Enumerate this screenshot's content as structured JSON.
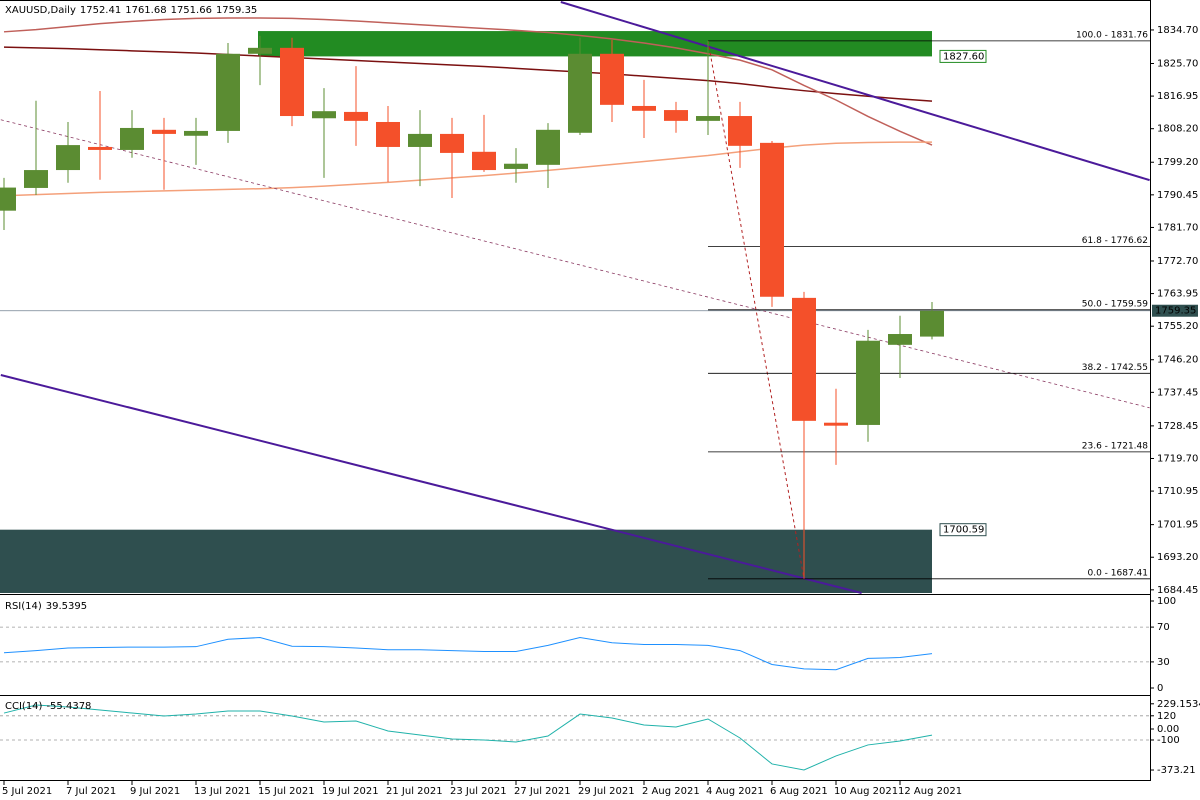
{
  "chart_data": [
    {
      "type": "candlestick",
      "title": "XAUUSD,Daily",
      "categories": [
        "5 Jul 2021",
        null,
        "7 Jul 2021",
        null,
        "9 Jul 2021",
        null,
        "13 Jul 2021",
        null,
        "15 Jul 2021",
        null,
        "19 Jul 2021",
        null,
        "21 Jul 2021",
        null,
        "23 Jul 2021",
        null,
        "27 Jul 2021",
        null,
        "29 Jul 2021",
        null,
        "2 Aug 2021",
        null,
        "4 Aug 2021",
        null,
        "6 Aug 2021",
        null,
        "10 Aug 2021",
        null,
        "12 Aug 2021",
        null
      ],
      "open": [
        1786.2,
        1792.3,
        1797.1,
        1803.3,
        1802.5,
        1807.9,
        1806.3,
        1807.6,
        1828.3,
        1829.9,
        1811.0,
        1812.7,
        1810.0,
        1803.3,
        1806.8,
        1802.0,
        1797.4,
        1798.5,
        1807.1,
        1828.3,
        1814.3,
        1813.2,
        1810.3,
        1811.6,
        1804.4,
        1762.8,
        1729.3,
        1728.7,
        1750.2,
        1752.41
      ],
      "high": [
        1795.0,
        1815.7,
        1810.0,
        1818.3,
        1813.2,
        1811.1,
        1811.1,
        1831.2,
        1833.1,
        1832.6,
        1819.1,
        1825.0,
        1814.3,
        1813.2,
        1811.1,
        1811.9,
        1803.0,
        1809.7,
        1832.6,
        1832.0,
        1821.3,
        1815.4,
        1831.76,
        1815.4,
        1804.9,
        1764.4,
        1738.4,
        1754.2,
        1758.0,
        1761.68
      ],
      "low": [
        1781.0,
        1790.4,
        1793.7,
        1794.5,
        1800.4,
        1791.8,
        1798.5,
        1804.4,
        1819.9,
        1808.9,
        1795.0,
        1803.6,
        1793.9,
        1792.8,
        1789.6,
        1796.6,
        1793.7,
        1792.3,
        1806.5,
        1810.0,
        1805.7,
        1807.1,
        1806.5,
        1797.7,
        1760.4,
        1687.41,
        1718.0,
        1724.2,
        1741.3,
        1751.66
      ],
      "close": [
        1792.4,
        1797.1,
        1803.8,
        1802.5,
        1808.4,
        1806.8,
        1807.6,
        1828.3,
        1829.9,
        1811.6,
        1812.9,
        1810.3,
        1803.3,
        1806.8,
        1801.7,
        1797.1,
        1798.8,
        1807.9,
        1828.3,
        1814.6,
        1813.0,
        1810.3,
        1811.6,
        1803.6,
        1763.1,
        1729.8,
        1728.5,
        1751.3,
        1753.1,
        1759.35
      ],
      "up_color": "#5b8c32",
      "down_color": "#f4502a",
      "ylim": [
        1683.6,
        1842.2
      ],
      "yticks": [
        {
          "value": 1834.7,
          "label": "1834.70"
        },
        {
          "value": 1825.7,
          "label": "1825.70"
        },
        1816.95,
        {
          "value": 1808.2,
          "label": "1808.20"
        },
        {
          "value": 1799.2,
          "label": "1799.20"
        },
        1790.45,
        {
          "value": 1781.7,
          "label": "1781.70"
        },
        {
          "value": 1772.7,
          "label": "1772.70"
        },
        1763.95,
        {
          "value": 1755.2,
          "label": "1755.20"
        },
        {
          "value": 1746.2,
          "label": "1746.20"
        },
        1737.45,
        1728.45,
        {
          "value": 1719.7,
          "label": "1719.70"
        },
        1710.95,
        1701.95,
        {
          "value": 1693.2,
          "label": "1693.20"
        },
        1684.45
      ],
      "moving_averages": [
        {
          "color": "#7b1010",
          "values": [
            1830.1,
            1829.9,
            1829.7,
            1829.4,
            1829.1,
            1828.8,
            1828.5,
            1828.1,
            1827.7,
            1827.3,
            1826.9,
            1826.5,
            1826.1,
            1825.7,
            1825.3,
            1824.9,
            1824.4,
            1823.9,
            1823.4,
            1822.9,
            1822.3,
            1821.7,
            1821.1,
            1820.3,
            1819.3,
            1818.4,
            1817.6,
            1816.9,
            1816.2,
            1815.6
          ]
        },
        {
          "color": "#c0605a",
          "values": [
            1834.2,
            1834.8,
            1835.6,
            1836.4,
            1837.0,
            1837.5,
            1837.8,
            1837.9,
            1837.9,
            1837.8,
            1837.5,
            1837.1,
            1836.6,
            1836.1,
            1835.6,
            1835.1,
            1834.6,
            1834.0,
            1833.2,
            1832.3,
            1831.2,
            1829.9,
            1828.3,
            1826.6,
            1824.0,
            1819.8,
            1815.9,
            1811.5,
            1807.5,
            1803.8
          ]
        },
        {
          "color": "#f4a07a",
          "values": [
            1790.2,
            1790.5,
            1790.8,
            1791.1,
            1791.3,
            1791.5,
            1791.7,
            1791.9,
            1792.1,
            1792.4,
            1792.8,
            1793.3,
            1793.8,
            1794.4,
            1795.0,
            1795.6,
            1796.3,
            1797.0,
            1797.8,
            1798.6,
            1799.4,
            1800.2,
            1801.0,
            1802.0,
            1803.0,
            1803.8,
            1804.3,
            1804.5,
            1804.6,
            1804.6
          ]
        }
      ],
      "trendlines": [
        {
          "color": "#4b1a9a",
          "dashed": false,
          "points": [
            [
              17.4,
              1842.2
            ],
            [
              35.8,
              1794.4
            ]
          ]
        },
        {
          "color": "#4b1a9a",
          "dashed": false,
          "points": [
            [
              -0.1,
              1742.1
            ],
            [
              26.8,
              1683.6
            ]
          ]
        },
        {
          "color": "#8b3a62",
          "dashed": true,
          "points": [
            [
              -0.1,
              1810.6
            ],
            [
              35.8,
              1733.3
            ]
          ]
        }
      ],
      "zones": [
        {
          "from": {
            "value": 1827.6,
            "label": "1827.60"
          },
          "to": 1834.4,
          "color": "#228b22"
        },
        {
          "from": 1700.59,
          "to": 1683.6,
          "color": "#2f4f4f"
        }
      ],
      "fib_anchor": [
        [
          22,
          1831.76
        ],
        [
          25,
          1687.41
        ]
      ],
      "fib_color": "#b22222",
      "fib_levels": [
        {
          "value": 1831.76,
          "label": "100.0 - 1831.76"
        },
        {
          "value": 1776.62,
          "label": "61.8 - 1776.62"
        },
        {
          "value": 1759.59,
          "label": "50.0 - 1759.59"
        },
        {
          "value": 1742.55,
          "label": "38.2 - 1742.55"
        },
        {
          "value": 1721.48,
          "label": "23.6 - 1721.48"
        },
        {
          "value": 1687.41,
          "label": "0.0 - 1687.41"
        }
      ]
    },
    {
      "type": "line",
      "title": "RSI(14)",
      "color": "#1e90ff",
      "values": [
        40.5,
        43,
        46,
        46.5,
        47,
        47,
        47.5,
        56,
        58,
        48,
        47.5,
        46,
        44,
        44,
        43,
        42,
        42,
        49,
        58,
        52,
        50,
        50,
        49,
        43,
        27,
        22,
        21,
        34,
        35,
        39.5395
      ],
      "ylim": [
        -4.6,
        104.6
      ],
      "yticks": [
        100,
        70,
        30,
        0
      ],
      "levels": [
        70,
        30
      ]
    },
    {
      "type": "line",
      "title": "CCI(14)",
      "color": "#20b2aa",
      "values": [
        145,
        218,
        200,
        173,
        145,
        118,
        136,
        164,
        164,
        118,
        64,
        73,
        -18,
        -55,
        -91,
        -100,
        -118,
        -64,
        136,
        100,
        36,
        18,
        91,
        -82,
        -318,
        -373.21,
        -245,
        -145,
        -109,
        -55.4378
      ],
      "ylim": [
        -464,
        291
      ],
      "yticks": [
        229.1534,
        120,
        {
          "value": 0,
          "label": "0.00"
        },
        -100,
        -373.21
      ],
      "levels": [
        120,
        -100
      ]
    }
  ]
}
